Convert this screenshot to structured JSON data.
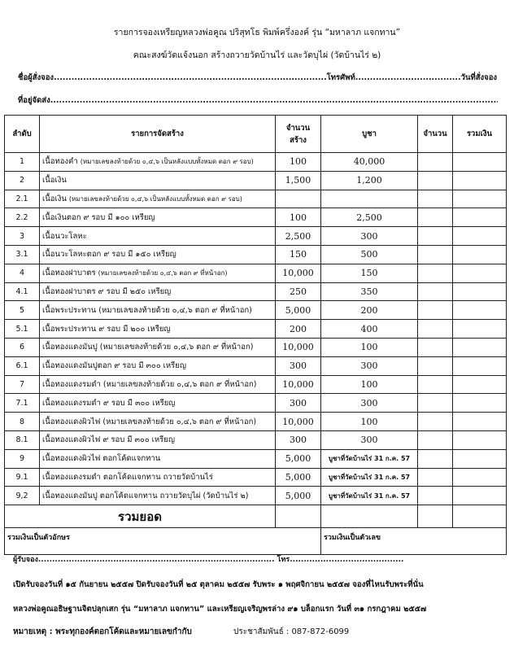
{
  "header": {
    "title": "รายการจองเหรียญหลวงพ่อคูณ ปริสุทโธ พิมพ์ครึ่งองค์ รุ่น “มหาลาภ แจกทาน”",
    "subtitle": "คณะสงฆ์วัดแจ้งนอก สร้างถวายวัดบ้านไร่ และวัดบุไผ่ (วัดบ้านไร่ ๒)",
    "name_field": "ชื่อผู้สั่งจอง.............................................................................................โทรศัพท์....................................วันที่สั่งจอง...............................",
    "address_field": "ที่อยู่จัดส่ง......................................................................................................................................................................................................"
  },
  "table": {
    "headers": [
      "ลำดับ",
      "รายการจัดสร้าง",
      "จำนวน",
      "สร้าง",
      "บูชา",
      "จำนวน",
      "รวมเงิน"
    ],
    "rows": [
      {
        "no": "1",
        "item": "เนื้อทองคำ",
        "note": "(หมายเลขลงท้ายด้วย ๐,๔,๖ เป็นหลังแบบทั้งหมด ตอก ๙ รอบ)",
        "qty": "100",
        "price": "40,000"
      },
      {
        "no": "2",
        "item": "เนื้อเงิน",
        "note": "",
        "qty": "1,500",
        "price": "1,200"
      },
      {
        "no": "2.1",
        "item": "เนื้อเงิน",
        "note": "(หมายเลขลงท้ายด้วย ๐,๔,๖ เป็นหลังแบบทั้งหมด ตอก ๙ รอบ)",
        "qty": "",
        "price": ""
      },
      {
        "no": "2.2",
        "item": "เนื้อเงินตอก ๙ รอบ มี ๑๐๐ เหรียญ",
        "note": "",
        "qty": "100",
        "price": "2,500"
      },
      {
        "no": "3",
        "item": "เนื้อนวะโลหะ",
        "note": "",
        "qty": "2,500",
        "price": "300"
      },
      {
        "no": "3.1",
        "item": "เนื้อนวะโลหะตอก ๙ รอบ มี ๑๕๐ เหรียญ",
        "note": "",
        "qty": "150",
        "price": "500"
      },
      {
        "no": "4",
        "item": "เนื้อทองฝาบาตร",
        "note": "(หมายเลขลงท้ายด้วย ๐,๔,๖ ตอก ๙ ที่หน้าอก)",
        "qty": "10,000",
        "price": "150"
      },
      {
        "no": "4.1",
        "item": "เนื้อทองฝาบาตร ๙ รอบ มี ๒๕๐ เหรียญ",
        "note": "",
        "qty": "250",
        "price": "350"
      },
      {
        "no": "5",
        "item": "เนื้อพระประทาน (หมายเลขลงท้ายด้วย ๐,๔,๖ ตอก ๙ ที่หน้าอก)",
        "note": "",
        "qty": "5,000",
        "price": "200"
      },
      {
        "no": "5.1",
        "item": "เนื้อพระประทาน ๙ รอบ มี ๒๐๐ เหรียญ",
        "note": "",
        "qty": "200",
        "price": "400"
      },
      {
        "no": "6",
        "item": "เนื้อทองแดงมันปู (หมายเลขลงท้ายด้วย ๐,๔,๖ ตอก ๙ ที่หน้าอก)",
        "note": "",
        "qty": "10,000",
        "price": "100"
      },
      {
        "no": "6.1",
        "item": "เนื้อทองแดงมันปูตอก ๙ รอบ มี ๓๐๐ เหรียญ",
        "note": "",
        "qty": "300",
        "price": "300"
      },
      {
        "no": "7",
        "item": "เนื้อทองแดงรมดำ (หมายเลขลงท้ายด้วย ๐,๔,๖ ตอก ๙ ที่หน้าอก)",
        "note": "",
        "qty": "10,000",
        "price": "100"
      },
      {
        "no": "7.1",
        "item": "เนื้อทองแดงรมดำ  ๙ รอบ มี ๓๐๐ เหรียญ",
        "note": "",
        "qty": "300",
        "price": "300"
      },
      {
        "no": "8",
        "item": "เนื้อทองแดงผิวไฟ (หมายเลขลงท้ายด้วย ๐,๔,๖ ตอก ๙ ที่หน้าอก)",
        "note": "",
        "qty": "10,000",
        "price": "100"
      },
      {
        "no": "8.1",
        "item": "เนื้อทองแดงผิวไฟ ๙ รอบ มี ๓๐๐ เหรียญ",
        "note": "",
        "qty": "300",
        "price": "300"
      },
      {
        "no": "9",
        "item": "เนื้อทองแดงผิวไฟ ตอกโค้ดแจกทาน",
        "note": "",
        "qty": "5,000",
        "price": "บูชาที่วัดบ้านไร่ 31 ก.ค. 57",
        "price_small": true
      },
      {
        "no": "9.1",
        "item": "เนื้อทองแดงรมดำ ตอกโค้ดแจกทาน ถวายวัดบ้านไร่",
        "note": "",
        "qty": "5,000",
        "price": "บูชาที่วัดบ้านไร่ 31 ก.ค. 57",
        "price_small": true
      },
      {
        "no": "9,2",
        "item": "เนื้อทองแดงมันปู ตอกโค้ดแจกทาน ถวายวัดบุไผ่ (วัดบ้านไร่ ๒)",
        "note": "",
        "qty": "5,000",
        "price": "บูชาที่วัดบ้านไร่ 31 ก.ค. 57",
        "price_small": true
      }
    ],
    "total_label": "รวมยอด",
    "words_label": "รวมเงินเป็นตัวอักษร",
    "digits_label": "รวมเงินเป็นตัวเลข"
  },
  "footer": {
    "receiver": "ผู้รับจอง.....................................................................................   โทร.........................................",
    "line1": "เปิดรับจองวันที่ ๑๕ กันยายน ๒๕๕๗  ปิดรับจองวันที่ ๒๕ ตุลาคม ๒๕๕๗ รับพระ ๑ พฤศจิกายน ๒๕๕๗ จองที่ไหนรับพระที่นั่น",
    "line2": "หลวงพ่อคูณอธิษฐานจิตปลุกเสก รุ่น “มหาลาภ แจกทาน” และเหรียญเจริญพรล่าง ๙๑ บล็อกแรก วันที่ ๓๑ กรกฎาคม ๒๕๕๗",
    "note": "หมายเหตุ : พระทุกองค์ตอกโค้ดและหมายเลขกำกับ",
    "contact": "ประชาสัมพันธ์ : 087-872-6099"
  }
}
